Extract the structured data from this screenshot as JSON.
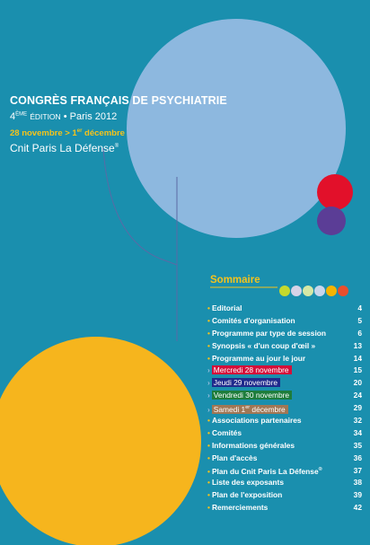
{
  "header": {
    "title": "CONGRÈS FRANÇAIS DE PSYCHIATRIE",
    "edition_number": "4",
    "edition_suffix": "ème",
    "edition_word": "Édition",
    "edition_rest": "• Paris 2012",
    "dates_start": "28 novembre > 1",
    "dates_sup": "er",
    "dates_end": " décembre",
    "venue": "Cnit Paris La Défense",
    "venue_mark": "®"
  },
  "sommaire": {
    "title": "Sommaire",
    "dot_colors": [
      "#c5d92d",
      "#d7d3e7",
      "#d5e8a6",
      "#c8d6ec",
      "#f5b400",
      "#e94f2d"
    ],
    "items": [
      {
        "label": "Editorial",
        "page": "4"
      },
      {
        "label": "Comités d'organisation",
        "page": "5"
      },
      {
        "label": "Programme par type de session",
        "page": "6"
      },
      {
        "label": "Synopsis « d'un coup d'œil »",
        "page": "13"
      },
      {
        "label": "Programme au jour le jour",
        "page": "14"
      },
      {
        "label": "Mercredi 28 novembre",
        "page": "15",
        "day_color": "#d40f3a"
      },
      {
        "label": "Jeudi 29 novembre",
        "page": "20",
        "day_color": "#1f2a8c"
      },
      {
        "label": "Vendredi 30 novembre",
        "page": "24",
        "day_color": "#1e7d3c"
      },
      {
        "label": "Samedi 1",
        "label_sup": "er",
        "label_end": " décembre",
        "page": "29",
        "day_color": "#a07755"
      },
      {
        "label": "Associations partenaires",
        "page": "32"
      },
      {
        "label": "Comités",
        "page": "34"
      },
      {
        "label": "Informations générales",
        "page": "35"
      },
      {
        "label": "Plan d'accès",
        "page": "36"
      },
      {
        "label": "Plan du Cnit Paris La Défense",
        "label_sup": "®",
        "page": "37"
      },
      {
        "label": "Liste des exposants",
        "page": "38"
      },
      {
        "label": "Plan de l'exposition",
        "page": "39"
      },
      {
        "label": "Remerciements",
        "page": "42"
      }
    ]
  },
  "colors": {
    "background": "#1a8fae",
    "big_circle": "#8db8df",
    "yellow_circle": "#f6b51d",
    "red_circle": "#e2102a",
    "purple_circle": "#5b3d96",
    "accent_yellow": "#f5c31b"
  }
}
